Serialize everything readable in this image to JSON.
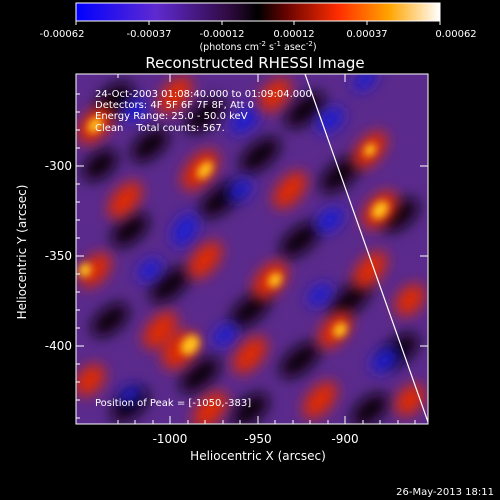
{
  "colorbar": {
    "ticks": [
      "-0.00062",
      "-0.00037",
      "-0.00012",
      "0.00012",
      "0.00037",
      "0.00062"
    ],
    "unit_prefix": "(photons cm",
    "unit_exp1": "-2",
    "unit_mid1": " s",
    "unit_exp2": "-1",
    "unit_mid2": " asec",
    "unit_exp3": "-2",
    "unit_suffix": ")"
  },
  "title": "Reconstructed RHESSI Image",
  "annotations": {
    "line1": "24-Oct-2003 01:08:40.000 to 01:09:04.000",
    "line2": "Detectors: 4F 5F 6F 7F 8F, Att 0",
    "line3": "Energy Range: 25.0 - 50.0 keV",
    "line4": "Clean    Total counts: 567.",
    "peak": "Position of Peak = [-1050,-383]"
  },
  "x_axis": {
    "label": "Heliocentric X (arcsec)",
    "ticks": [
      "-1000",
      "-950",
      "-900"
    ]
  },
  "y_axis": {
    "label": "Heliocentric Y (arcsec)",
    "ticks": [
      "-300",
      "-350",
      "-400"
    ]
  },
  "footer": {
    "timestamp": "26-May-2013 18:11"
  },
  "colors": {
    "background": "#000000",
    "axes": "#ffffff",
    "limb": "#ffffff"
  }
}
